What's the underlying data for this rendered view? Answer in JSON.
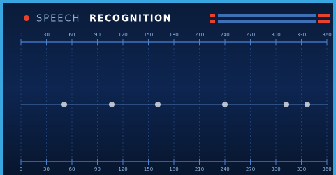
{
  "header": {
    "title_light": "SPEECH",
    "title_bold": "RECOGNITION"
  },
  "ruler": {
    "labels": [
      0,
      30,
      60,
      90,
      120,
      150,
      180,
      210,
      240,
      270,
      300,
      330,
      360
    ]
  }
}
